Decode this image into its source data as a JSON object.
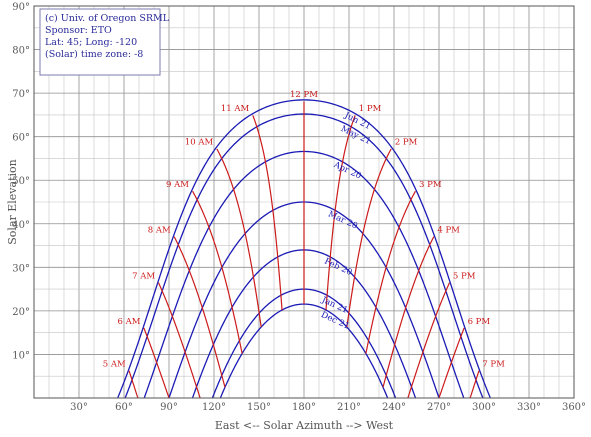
{
  "info_box": {
    "lines": [
      "(c) Univ. of Oregon SRML",
      "Sponsor: ETO",
      "Lat: 45; Long: -120",
      "(Solar) time zone: -8"
    ]
  },
  "chart_data": {
    "type": "line",
    "title": "",
    "xlabel": "East <-- Solar Azimuth --> West",
    "ylabel": "Solar Elevation",
    "xlim": [
      0,
      360
    ],
    "ylim": [
      0,
      90
    ],
    "grid": true,
    "x_ticks": [
      30,
      60,
      90,
      120,
      150,
      180,
      210,
      240,
      270,
      300,
      330,
      360
    ],
    "x_tick_labels": [
      "30°",
      "60°",
      "90°",
      "120°",
      "150°",
      "180°",
      "210°",
      "240°",
      "270°",
      "300°",
      "330°",
      "360°"
    ],
    "y_ticks": [
      10,
      20,
      30,
      40,
      50,
      60,
      70,
      80,
      90
    ],
    "y_tick_labels": [
      "10°",
      "20°",
      "30°",
      "40°",
      "50°",
      "60°",
      "70°",
      "80°",
      "90°"
    ],
    "latitude_deg": 45,
    "colors": {
      "date_curves": "#1b1bb5",
      "hour_lines": "#cc1b1b",
      "grid": "#9a9a9a",
      "info_text": "#2b2b9a"
    },
    "date_curves": [
      {
        "label": "Jun 21",
        "declination": 23.44
      },
      {
        "label": "May 21",
        "declination": 20.2
      },
      {
        "label": "Apr 20",
        "declination": 11.6
      },
      {
        "label": "Mar 20",
        "declination": 0.0
      },
      {
        "label": "Feb 20",
        "declination": -11.0
      },
      {
        "label": "Jan 21",
        "declination": -20.0
      },
      {
        "label": "Dec 21",
        "declination": -23.44
      }
    ],
    "hour_lines": [
      {
        "label": "5 AM",
        "hour": 5
      },
      {
        "label": "6 AM",
        "hour": 6
      },
      {
        "label": "7 AM",
        "hour": 7
      },
      {
        "label": "8 AM",
        "hour": 8
      },
      {
        "label": "9 AM",
        "hour": 9
      },
      {
        "label": "10 AM",
        "hour": 10
      },
      {
        "label": "11 AM",
        "hour": 11
      },
      {
        "label": "12 PM",
        "hour": 12
      },
      {
        "label": "1 PM",
        "hour": 13
      },
      {
        "label": "2 PM",
        "hour": 14
      },
      {
        "label": "3 PM",
        "hour": 15
      },
      {
        "label": "4 PM",
        "hour": 16
      },
      {
        "label": "5 PM",
        "hour": 17
      },
      {
        "label": "6 PM",
        "hour": 18
      },
      {
        "label": "7 PM",
        "hour": 19
      }
    ]
  }
}
